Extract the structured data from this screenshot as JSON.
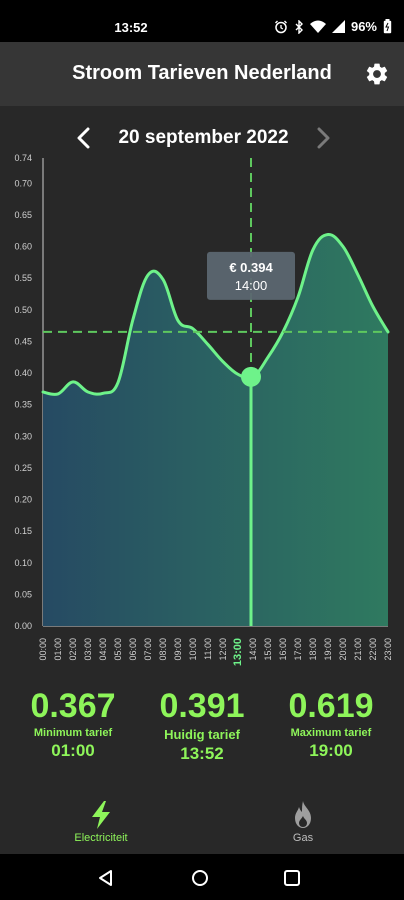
{
  "status_bar": {
    "time": "13:52",
    "battery_percent": "96%",
    "icons": [
      "alarm-icon",
      "bluetooth-icon",
      "wifi-icon",
      "signal-icon",
      "battery-icon"
    ]
  },
  "app_bar": {
    "title": "Stroom Tarieven Nederland",
    "settings_icon": "gear-icon"
  },
  "date_nav": {
    "date": "20 september 2022",
    "prev_icon": "chevron-left-icon",
    "next_icon": "chevron-right-icon"
  },
  "chart_data": {
    "type": "area",
    "x": [
      "00:00",
      "01:00",
      "02:00",
      "03:00",
      "04:00",
      "05:00",
      "06:00",
      "07:00",
      "08:00",
      "09:00",
      "10:00",
      "11:00",
      "12:00",
      "13:00",
      "14:00",
      "15:00",
      "16:00",
      "17:00",
      "18:00",
      "19:00",
      "20:00",
      "21:00",
      "22:00",
      "23:00"
    ],
    "y": [
      0.37,
      0.367,
      0.386,
      0.37,
      0.368,
      0.385,
      0.485,
      0.555,
      0.548,
      0.483,
      0.47,
      0.445,
      0.418,
      0.398,
      0.394,
      0.425,
      0.465,
      0.52,
      0.595,
      0.619,
      0.6,
      0.555,
      0.505,
      0.465
    ],
    "ylim": [
      0.0,
      0.74
    ],
    "yticks": [
      "0.00",
      "0.05",
      "0.10",
      "0.15",
      "0.20",
      "0.25",
      "0.30",
      "0.35",
      "0.40",
      "0.45",
      "0.50",
      "0.55",
      "0.60",
      "0.65",
      "0.70",
      "0.74"
    ],
    "average_line": 0.465,
    "selected": {
      "x": "13:52",
      "y": 0.394,
      "label_value": "€ 0.394",
      "label_time": "14:00"
    },
    "highlighted_tick": "13:00",
    "colors": {
      "line": "#6ef28a",
      "fill_top": "#2f7a60",
      "fill_bottom": "#264a63",
      "dashes": "#5ec85e",
      "tick_highlight": "#6ef28a"
    }
  },
  "stats": {
    "min": {
      "value": "0.367",
      "label": "Minimum tarief",
      "time": "01:00"
    },
    "current": {
      "value": "0.391",
      "label": "Huidig tarief",
      "time": "13:52"
    },
    "max": {
      "value": "0.619",
      "label": "Maximum tarief",
      "time": "19:00"
    }
  },
  "bottom_nav": {
    "electricity": {
      "label": "Electriciteit",
      "icon": "lightning-icon",
      "active": true
    },
    "gas": {
      "label": "Gas",
      "icon": "flame-icon",
      "active": false
    }
  },
  "system_nav": {
    "back_icon": "back-triangle-icon",
    "home_icon": "home-circle-icon",
    "recents_icon": "recents-square-icon"
  },
  "colors": {
    "accent": "#8ef55a",
    "background": "#282828",
    "app_bar": "#363636",
    "status_bar": "#000000",
    "tooltip": "#5b6670"
  }
}
